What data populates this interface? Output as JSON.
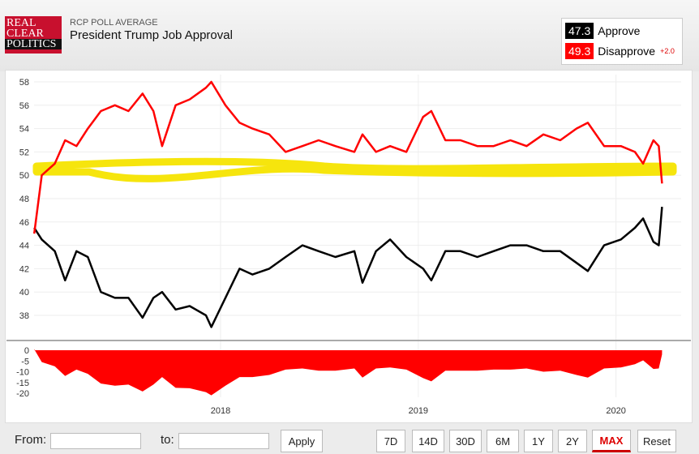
{
  "header": {
    "logo_text": "REAL CLEAR POLITICS",
    "subtitle": "RCP POLL AVERAGE",
    "title": "President Trump Job Approval"
  },
  "legend": {
    "approve_value": "47.3",
    "approve_label": "Approve",
    "disapprove_value": "49.3",
    "disapprove_label": "Disapprove",
    "disapprove_change": "+2.0",
    "approve_color": "#000000",
    "disapprove_color": "#ff0000"
  },
  "footer": {
    "from_label": "From:",
    "to_label": "to:",
    "from_value": "",
    "to_value": "",
    "apply": "Apply",
    "ranges": [
      "7D",
      "14D",
      "30D",
      "6M",
      "1Y",
      "2Y",
      "MAX",
      "Reset"
    ],
    "active_range": "MAX"
  },
  "chart_data": [
    {
      "type": "line",
      "title": "",
      "ylim": [
        37,
        58.5
      ],
      "yticks": [
        58,
        56,
        54,
        52,
        50,
        48,
        46,
        44,
        42,
        40,
        38
      ],
      "xticks": [
        "2018",
        "2019",
        "2020"
      ],
      "grid": true,
      "highlight_color": "#f5e400",
      "series": [
        {
          "name": "Approve",
          "color": "#000000"
        },
        {
          "name": "Disapprove",
          "color": "#ff0000"
        }
      ],
      "points": [
        [
          "2017-01-22",
          45.5,
          45.0
        ],
        [
          "2017-02-05",
          44.5,
          50.0
        ],
        [
          "2017-03-01",
          43.5,
          51.0
        ],
        [
          "2017-03-20",
          41.0,
          53.0
        ],
        [
          "2017-04-10",
          43.5,
          52.5
        ],
        [
          "2017-05-01",
          43.0,
          54.0
        ],
        [
          "2017-05-25",
          40.0,
          55.5
        ],
        [
          "2017-06-20",
          39.5,
          56.0
        ],
        [
          "2017-07-15",
          39.5,
          55.5
        ],
        [
          "2017-08-10",
          37.8,
          57.0
        ],
        [
          "2017-08-30",
          39.5,
          55.5
        ],
        [
          "2017-09-15",
          40.0,
          52.5
        ],
        [
          "2017-10-10",
          38.5,
          56.0
        ],
        [
          "2017-11-05",
          38.8,
          56.5
        ],
        [
          "2017-12-05",
          38.0,
          57.5
        ],
        [
          "2017-12-15",
          37.0,
          58.0
        ],
        [
          "2018-01-10",
          39.5,
          56.0
        ],
        [
          "2018-02-05",
          42.0,
          54.5
        ],
        [
          "2018-03-01",
          41.5,
          54.0
        ],
        [
          "2018-04-01",
          42.0,
          53.5
        ],
        [
          "2018-05-01",
          43.0,
          52.0
        ],
        [
          "2018-06-01",
          44.0,
          52.5
        ],
        [
          "2018-07-01",
          43.5,
          53.0
        ],
        [
          "2018-08-01",
          43.0,
          52.5
        ],
        [
          "2018-09-05",
          43.5,
          52.0
        ],
        [
          "2018-09-20",
          40.8,
          53.5
        ],
        [
          "2018-10-15",
          43.5,
          52.0
        ],
        [
          "2018-11-10",
          44.5,
          52.5
        ],
        [
          "2018-12-10",
          43.0,
          52.0
        ],
        [
          "2019-01-10",
          42.0,
          55.0
        ],
        [
          "2019-01-25",
          41.0,
          55.5
        ],
        [
          "2019-02-20",
          43.5,
          53.0
        ],
        [
          "2019-03-20",
          43.5,
          53.0
        ],
        [
          "2019-04-20",
          43.0,
          52.5
        ],
        [
          "2019-05-20",
          43.5,
          52.5
        ],
        [
          "2019-06-20",
          44.0,
          53.0
        ],
        [
          "2019-07-20",
          44.0,
          52.5
        ],
        [
          "2019-08-20",
          43.5,
          53.5
        ],
        [
          "2019-09-20",
          43.5,
          53.0
        ],
        [
          "2019-10-20",
          42.5,
          54.0
        ],
        [
          "2019-11-10",
          41.8,
          54.5
        ],
        [
          "2019-12-10",
          44.0,
          52.5
        ],
        [
          "2020-01-10",
          44.5,
          52.5
        ],
        [
          "2020-02-05",
          45.5,
          52.0
        ],
        [
          "2020-02-20",
          46.3,
          51.0
        ],
        [
          "2020-03-10",
          44.3,
          53.0
        ],
        [
          "2020-03-20",
          44.0,
          52.5
        ],
        [
          "2020-03-26",
          47.3,
          49.3
        ]
      ]
    },
    {
      "type": "area",
      "title": "",
      "ylim": [
        -21,
        1
      ],
      "yticks": [
        0,
        -5,
        -10,
        -15,
        -20
      ],
      "series": [
        {
          "name": "Spread",
          "color": "#ff0000"
        }
      ]
    }
  ]
}
